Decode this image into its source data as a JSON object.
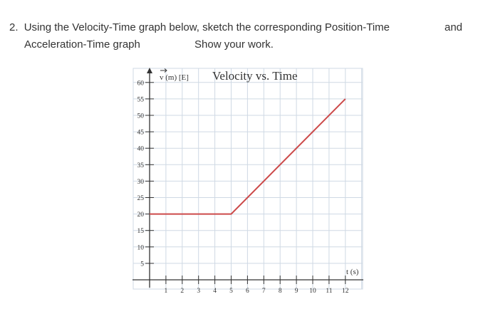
{
  "question": {
    "number": "2.",
    "line1": "Using the Velocity-Time graph below, sketch the corresponding Position-Time",
    "line1_end": "and",
    "line2": "Acceleration-Time graph",
    "instruction": "Show your work."
  },
  "chart_data": {
    "type": "line",
    "title": "Velocity vs. Time",
    "ylabel": "v (m) [E]",
    "xlabel": "t (s)",
    "xlim": [
      0,
      12
    ],
    "ylim": [
      0,
      60
    ],
    "x_ticks": [
      1,
      2,
      3,
      4,
      5,
      6,
      7,
      8,
      9,
      10,
      11,
      12
    ],
    "x_tick_labels": [
      "1",
      "2",
      "3",
      "4",
      "5",
      "6",
      "7",
      "8",
      "9",
      "10",
      "11",
      "12"
    ],
    "y_ticks": [
      5,
      10,
      15,
      20,
      25,
      30,
      35,
      40,
      45,
      50,
      55,
      60
    ],
    "y_tick_labels": [
      "5",
      "10",
      "15",
      "20",
      "25",
      "30",
      "35",
      "40",
      "45",
      "50",
      "55",
      "60"
    ],
    "grid": true,
    "series": [
      {
        "x": [
          0,
          5,
          12
        ],
        "y": [
          20,
          20,
          55
        ]
      }
    ],
    "colors": {
      "line": "#cc4a4a",
      "grid": "#cfd9e4",
      "axis": "#333333"
    }
  }
}
